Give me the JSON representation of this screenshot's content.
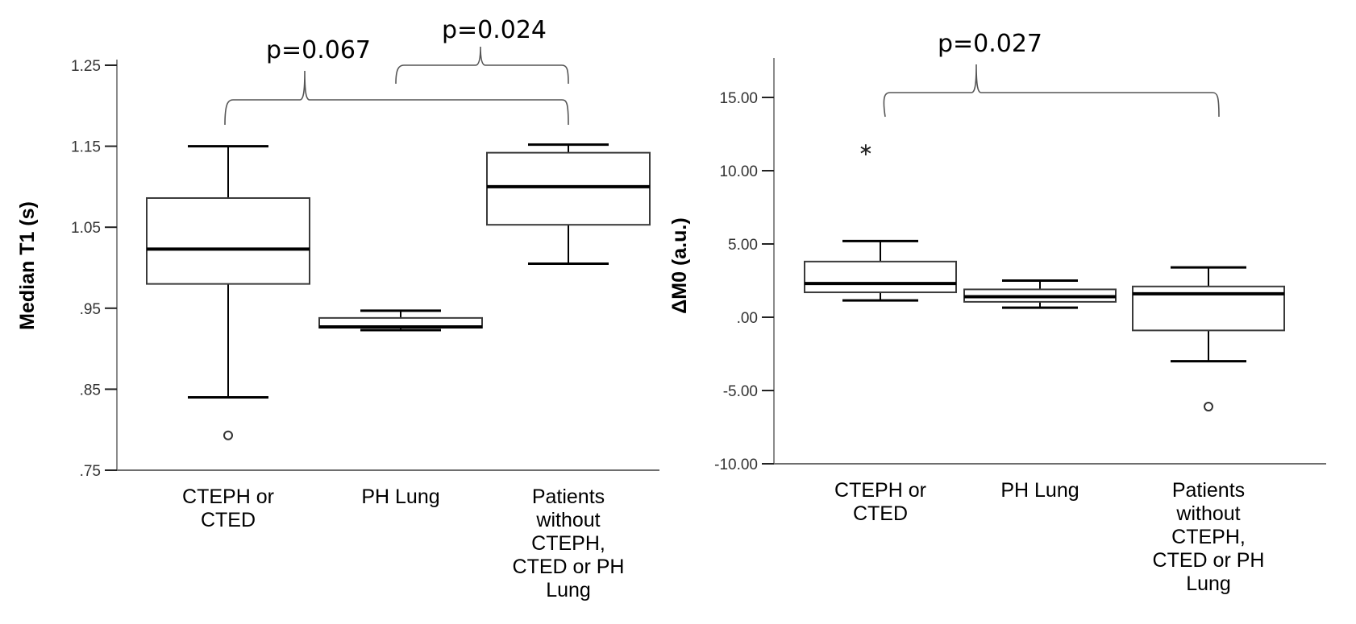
{
  "chart_data": [
    {
      "type": "boxplot",
      "ylabel": "Median T1 (s)",
      "xlabel": "",
      "ylim": [
        0.75,
        1.25
      ],
      "yticks": [
        0.75,
        0.85,
        0.95,
        1.05,
        1.15,
        1.25
      ],
      "ytick_labels": [
        ".75",
        ".85",
        ".95",
        "1.05",
        "1.15",
        "1.25"
      ],
      "grid": false,
      "categories": [
        [
          "CTEPH or",
          "CTED"
        ],
        [
          "PH Lung"
        ],
        [
          "Patients",
          "without",
          "CTEPH,",
          "CTED or PH",
          "Lung"
        ]
      ],
      "boxes": [
        {
          "whisker_low": 0.84,
          "q1": 0.98,
          "median": 1.023,
          "q3": 1.086,
          "whisker_high": 1.15,
          "outliers": [
            0.793
          ],
          "extremes": []
        },
        {
          "whisker_low": 0.923,
          "q1": 0.926,
          "median": 0.927,
          "q3": 0.938,
          "whisker_high": 0.947,
          "outliers": [],
          "extremes": []
        },
        {
          "whisker_low": 1.005,
          "q1": 1.053,
          "median": 1.1,
          "q3": 1.142,
          "whisker_high": 1.152,
          "outliers": [],
          "extremes": []
        }
      ],
      "annotations": [
        {
          "text": "p=0.067",
          "from": 0,
          "to": 2,
          "level": 1.2
        },
        {
          "text": "p=0.024",
          "from": 1,
          "to": 2,
          "level": 1.22
        }
      ]
    },
    {
      "type": "boxplot",
      "ylabel": "ΔM0 (a.u.)",
      "xlabel": "",
      "ylim": [
        -10,
        17.5
      ],
      "yticks": [
        -10,
        -5,
        0,
        5,
        10,
        15
      ],
      "ytick_labels": [
        "-10.00",
        "-5.00",
        ".00",
        "5.00",
        "10.00",
        "15.00"
      ],
      "grid": false,
      "categories": [
        [
          "CTEPH or",
          "CTED"
        ],
        [
          "PH Lung"
        ],
        [
          "Patients",
          "without",
          "CTEPH,",
          "CTED or PH",
          "Lung"
        ]
      ],
      "boxes": [
        {
          "whisker_low": 1.15,
          "q1": 1.7,
          "median": 2.3,
          "q3": 3.8,
          "whisker_high": 5.2,
          "outliers": [],
          "extremes": [
            11.6
          ]
        },
        {
          "whisker_low": 0.65,
          "q1": 1.05,
          "median": 1.4,
          "q3": 1.9,
          "whisker_high": 2.5,
          "outliers": [],
          "extremes": []
        },
        {
          "whisker_low": -3.0,
          "q1": -0.9,
          "median": 1.6,
          "q3": 2.1,
          "whisker_high": 3.4,
          "outliers": [
            -6.1
          ],
          "extremes": []
        }
      ],
      "annotations": [
        {
          "text": "p=0.027",
          "from": 0,
          "to": 2,
          "level": 15.3
        }
      ]
    }
  ]
}
